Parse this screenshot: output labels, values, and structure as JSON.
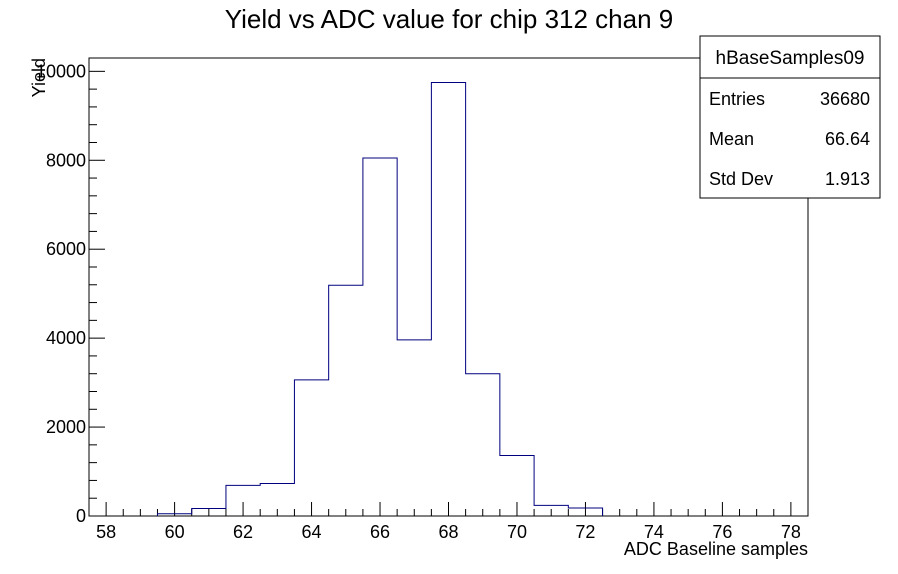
{
  "chart_data": {
    "type": "bar",
    "style": "step-histogram",
    "title": "Yield vs ADC value for chip 312 chan 9",
    "xlabel": "ADC Baseline samples",
    "ylabel": "Yield",
    "xlim": [
      57.5,
      78.5
    ],
    "ylim": [
      0,
      10300
    ],
    "xticks": [
      58,
      60,
      62,
      64,
      66,
      68,
      70,
      72,
      74,
      76,
      78
    ],
    "yticks": [
      0,
      2000,
      4000,
      6000,
      8000,
      10000
    ],
    "bin_edges": [
      59.5,
      60.5,
      61.5,
      62.5,
      63.5,
      64.5,
      65.5,
      66.5,
      67.5,
      68.5,
      69.5,
      70.5,
      71.5,
      72.5
    ],
    "values": [
      50,
      170,
      690,
      730,
      3060,
      5190,
      8050,
      3960,
      9750,
      3200,
      1360,
      240,
      180
    ],
    "line_color": "#00007f",
    "stats_box": {
      "name": "hBaseSamples09",
      "rows": [
        {
          "label": "Entries",
          "value": "36680"
        },
        {
          "label": "Mean",
          "value": "66.64"
        },
        {
          "label": "Std Dev",
          "value": "1.913"
        }
      ]
    }
  }
}
